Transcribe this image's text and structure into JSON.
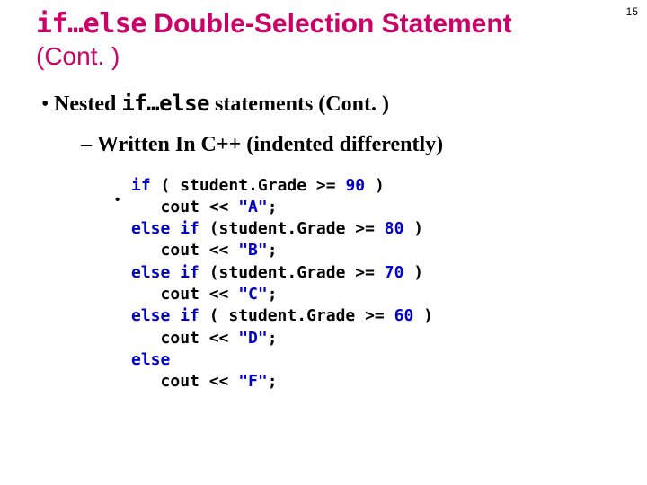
{
  "page_number": "15",
  "title": {
    "keyword": "if…else",
    "rest": " Double-Selection Statement",
    "cont": "(Cont. )",
    "color": "#cc0066"
  },
  "bullet1": {
    "prefix": "Nested ",
    "keyword": "if…else",
    "suffix": " statements (Cont. )"
  },
  "bullet2": {
    "text": "Written In C++ (indented differently)"
  },
  "code": {
    "keyword_color": "#0000cc",
    "literal_color": "#0000cc",
    "lines": [
      {
        "indent": 0,
        "tokens": [
          {
            "t": "if",
            "c": "kw"
          },
          {
            "t": " ( student.Grade >= "
          },
          {
            "t": "90",
            "c": "num"
          },
          {
            "t": " )"
          }
        ]
      },
      {
        "indent": 1,
        "tokens": [
          {
            "t": "cout << "
          },
          {
            "t": "\"A\"",
            "c": "str"
          },
          {
            "t": ";"
          }
        ]
      },
      {
        "indent": 0,
        "tokens": [
          {
            "t": "else if",
            "c": "kw"
          },
          {
            "t": " (student.Grade >= "
          },
          {
            "t": "80",
            "c": "num"
          },
          {
            "t": " )"
          }
        ]
      },
      {
        "indent": 1,
        "tokens": [
          {
            "t": "cout << "
          },
          {
            "t": "\"B\"",
            "c": "str"
          },
          {
            "t": ";"
          }
        ]
      },
      {
        "indent": 0,
        "tokens": [
          {
            "t": "else if",
            "c": "kw"
          },
          {
            "t": " (student.Grade >= "
          },
          {
            "t": "70",
            "c": "num"
          },
          {
            "t": " )"
          }
        ]
      },
      {
        "indent": 1,
        "tokens": [
          {
            "t": "cout << "
          },
          {
            "t": "\"C\"",
            "c": "str"
          },
          {
            "t": ";"
          }
        ]
      },
      {
        "indent": 0,
        "tokens": [
          {
            "t": "else if",
            "c": "kw"
          },
          {
            "t": " ( student.Grade >= "
          },
          {
            "t": "60",
            "c": "num"
          },
          {
            "t": " )"
          }
        ]
      },
      {
        "indent": 1,
        "tokens": [
          {
            "t": "cout << "
          },
          {
            "t": "\"D\"",
            "c": "str"
          },
          {
            "t": ";"
          }
        ]
      },
      {
        "indent": 0,
        "tokens": [
          {
            "t": "else",
            "c": "kw"
          }
        ]
      },
      {
        "indent": 1,
        "tokens": [
          {
            "t": "cout << "
          },
          {
            "t": "\"F\"",
            "c": "str"
          },
          {
            "t": ";"
          }
        ]
      }
    ],
    "indent_spaces": "   "
  }
}
